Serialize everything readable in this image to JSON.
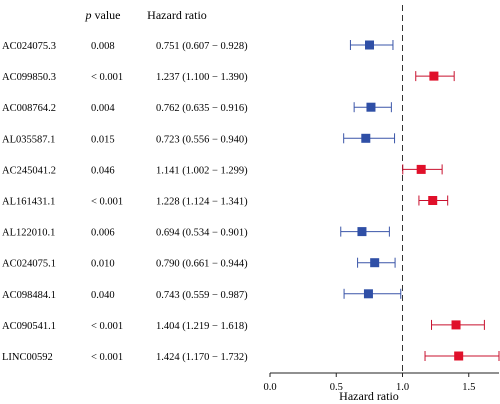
{
  "header": {
    "p_italic": "p",
    "p_rest": " value",
    "hr": "Hazard ratio"
  },
  "chart_data": {
    "type": "forest",
    "xlabel": "Hazard ratio",
    "xlim": [
      0,
      1.75
    ],
    "xticks": [
      0.0,
      0.5,
      1.0,
      1.5
    ],
    "tick_labels": [
      "0.0",
      "0.5",
      "1.0",
      "1.5"
    ],
    "reference_line": 1.0,
    "colors": {
      "protective": "#2f4fa6",
      "risk": "#e0102a",
      "whisker_protective": "#3a55a8",
      "whisker_risk": "#c8102e"
    },
    "rows": [
      {
        "gene": "AC024075.3",
        "p": "0.008",
        "hr_text": "0.751 (0.607 − 0.928)",
        "hr": 0.751,
        "lo": 0.607,
        "hi": 0.928
      },
      {
        "gene": "AC099850.3",
        "p": "< 0.001",
        "hr_text": "1.237 (1.100 − 1.390)",
        "hr": 1.237,
        "lo": 1.1,
        "hi": 1.39
      },
      {
        "gene": "AC008764.2",
        "p": "0.004",
        "hr_text": "0.762 (0.635 − 0.916)",
        "hr": 0.762,
        "lo": 0.635,
        "hi": 0.916
      },
      {
        "gene": "AL035587.1",
        "p": "0.015",
        "hr_text": "0.723 (0.556 − 0.940)",
        "hr": 0.723,
        "lo": 0.556,
        "hi": 0.94
      },
      {
        "gene": "AC245041.2",
        "p": "0.046",
        "hr_text": "1.141 (1.002 − 1.299)",
        "hr": 1.141,
        "lo": 1.002,
        "hi": 1.299
      },
      {
        "gene": "AL161431.1",
        "p": "< 0.001",
        "hr_text": "1.228 (1.124 − 1.341)",
        "hr": 1.228,
        "lo": 1.124,
        "hi": 1.341
      },
      {
        "gene": "AL122010.1",
        "p": "0.006",
        "hr_text": "0.694 (0.534 − 0.901)",
        "hr": 0.694,
        "lo": 0.534,
        "hi": 0.901
      },
      {
        "gene": "AC024075.1",
        "p": "0.010",
        "hr_text": "0.790 (0.661 − 0.944)",
        "hr": 0.79,
        "lo": 0.661,
        "hi": 0.944
      },
      {
        "gene": "AC098484.1",
        "p": "0.040",
        "hr_text": "0.743 (0.559 − 0.987)",
        "hr": 0.743,
        "lo": 0.559,
        "hi": 0.987
      },
      {
        "gene": "AC090541.1",
        "p": "< 0.001",
        "hr_text": "1.404 (1.219 − 1.618)",
        "hr": 1.404,
        "lo": 1.219,
        "hi": 1.618
      },
      {
        "gene": "LINC00592",
        "p": "< 0.001",
        "hr_text": "1.424 (1.170 − 1.732)",
        "hr": 1.424,
        "lo": 1.17,
        "hi": 1.732
      }
    ]
  }
}
